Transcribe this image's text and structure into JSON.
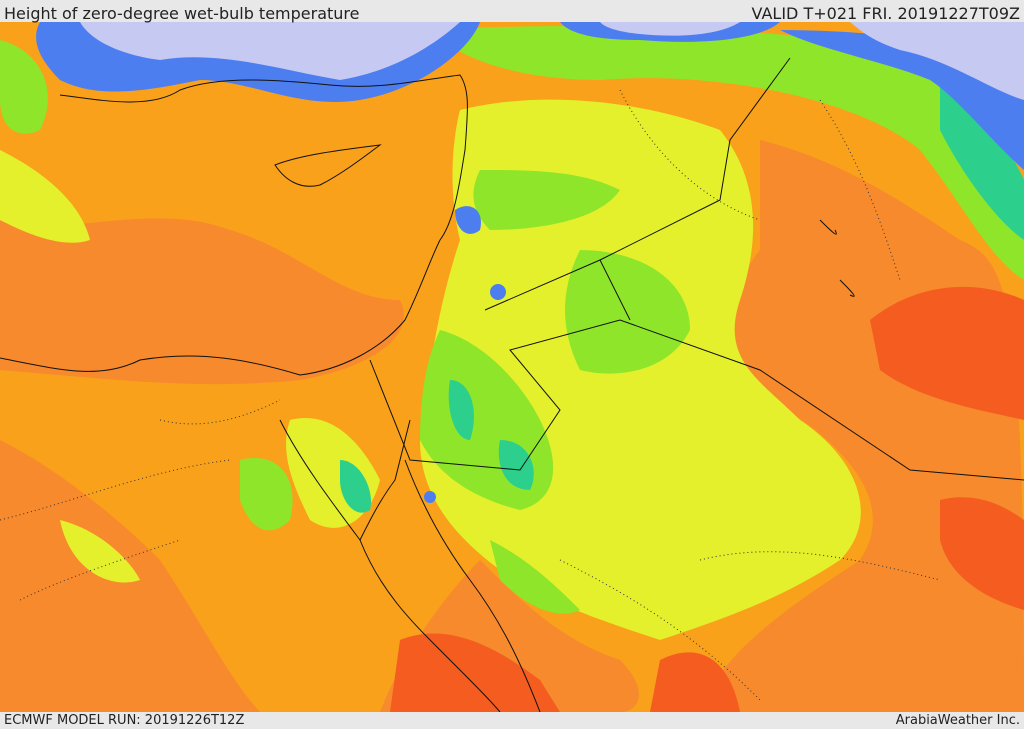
{
  "header": {
    "title": "Height of zero-degree wet-bulb temperature",
    "valid": "VALID T+021 FRI. 20191227T09Z"
  },
  "footer": {
    "model_run": "ECMWF MODEL RUN: 20191226T12Z",
    "credit": "ArabiaWeather Inc."
  }
}
